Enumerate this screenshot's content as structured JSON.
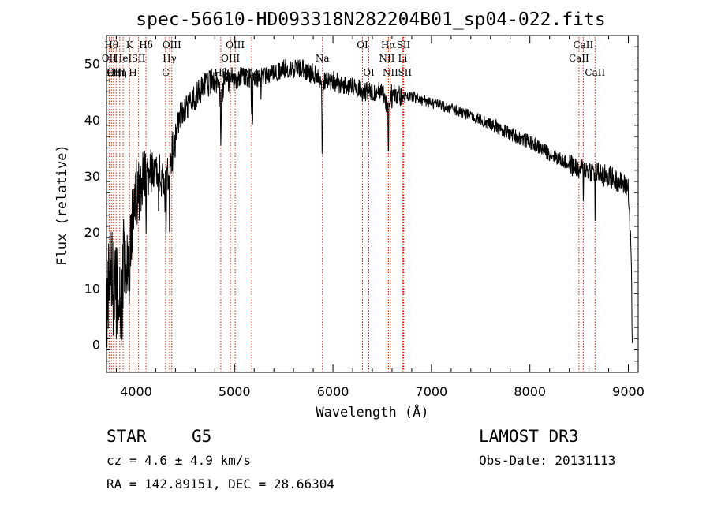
{
  "chart_data": {
    "type": "line",
    "title": "spec-56610-HD093318N282204B01_sp04-022.fits",
    "xlabel": "Wavelength (Å)",
    "ylabel": "Flux (relative)",
    "xlim": [
      3700,
      9100
    ],
    "ylim": [
      -5,
      55
    ],
    "xticks": [
      4000,
      5000,
      6000,
      7000,
      8000,
      9000
    ],
    "yticks": [
      0,
      10,
      20,
      30,
      40,
      50
    ],
    "series": [
      {
        "name": "flux",
        "anchors": [
          [
            3700,
            5
          ],
          [
            3740,
            15
          ],
          [
            3780,
            8
          ],
          [
            3820,
            10
          ],
          [
            3850,
            3
          ],
          [
            3880,
            18
          ],
          [
            3920,
            12
          ],
          [
            3960,
            22
          ],
          [
            4000,
            27
          ],
          [
            4050,
            28
          ],
          [
            4100,
            29
          ],
          [
            4150,
            31
          ],
          [
            4200,
            30
          ],
          [
            4250,
            30
          ],
          [
            4300,
            27
          ],
          [
            4340,
            32
          ],
          [
            4400,
            37
          ],
          [
            4450,
            41
          ],
          [
            4500,
            42
          ],
          [
            4600,
            44
          ],
          [
            4700,
            46
          ],
          [
            4800,
            47
          ],
          [
            4861,
            44
          ],
          [
            4900,
            47
          ],
          [
            5000,
            47
          ],
          [
            5100,
            48
          ],
          [
            5200,
            47
          ],
          [
            5300,
            48
          ],
          [
            5400,
            48
          ],
          [
            5500,
            49
          ],
          [
            5600,
            49
          ],
          [
            5700,
            49
          ],
          [
            5800,
            48
          ],
          [
            5900,
            47
          ],
          [
            6000,
            47
          ],
          [
            6100,
            46
          ],
          [
            6200,
            46
          ],
          [
            6300,
            45
          ],
          [
            6400,
            45
          ],
          [
            6500,
            45
          ],
          [
            6563,
            42
          ],
          [
            6600,
            45
          ],
          [
            6700,
            44
          ],
          [
            6800,
            44
          ],
          [
            7000,
            43
          ],
          [
            7200,
            42
          ],
          [
            7500,
            40
          ],
          [
            7800,
            37.5
          ],
          [
            8000,
            36
          ],
          [
            8200,
            34
          ],
          [
            8400,
            32
          ],
          [
            8600,
            31
          ],
          [
            8800,
            30
          ],
          [
            8900,
            29
          ],
          [
            9000,
            28
          ],
          [
            9030,
            15
          ],
          [
            9040,
            0
          ]
        ],
        "dips": [
          [
            3934,
            5
          ],
          [
            3968,
            4
          ],
          [
            4101,
            8
          ],
          [
            4227,
            6
          ],
          [
            4305,
            10
          ],
          [
            4340,
            17
          ],
          [
            4383,
            5
          ],
          [
            4861,
            10
          ],
          [
            5020,
            3
          ],
          [
            5172,
            6
          ],
          [
            5183,
            12
          ],
          [
            5270,
            4
          ],
          [
            5890,
            12
          ],
          [
            5896,
            10
          ],
          [
            6563,
            11
          ],
          [
            6600,
            3
          ],
          [
            8498,
            4
          ],
          [
            8542,
            6
          ],
          [
            8662,
            8
          ],
          [
            8750,
            5
          ]
        ]
      }
    ],
    "lines": [
      {
        "wavelength": 3727,
        "label": "OII",
        "row": 1
      },
      {
        "wavelength": 3750,
        "label": "Hθ",
        "row": 0
      },
      {
        "wavelength": 3771,
        "label": "Hη",
        "row": 2
      },
      {
        "wavelength": 3798,
        "label": "OIII",
        "row": 2
      },
      {
        "wavelength": 3835,
        "label": "Hη",
        "row": 2
      },
      {
        "wavelength": 3869,
        "label": "HeI",
        "row": 1
      },
      {
        "wavelength": 3934,
        "label": "K",
        "row": 0
      },
      {
        "wavelength": 3968,
        "label": "H",
        "row": 2
      },
      {
        "wavelength": 4026,
        "label": "SII",
        "row": 1
      },
      {
        "wavelength": 4101,
        "label": "Hδ",
        "row": 0
      },
      {
        "wavelength": 4300,
        "label": "G",
        "row": 2
      },
      {
        "wavelength": 4341,
        "label": "Hγ",
        "row": 1
      },
      {
        "wavelength": 4363,
        "label": "OIII",
        "row": 0
      },
      {
        "wavelength": 4861,
        "label": "Hβ",
        "row": 2
      },
      {
        "wavelength": 4959,
        "label": "OIII",
        "row": 1
      },
      {
        "wavelength": 5007,
        "label": "OIII",
        "row": 0
      },
      {
        "wavelength": 5175,
        "label": "Mg",
        "row": 2
      },
      {
        "wavelength": 5893,
        "label": "Na",
        "row": 1
      },
      {
        "wavelength": 6300,
        "label": "OI",
        "row": 0
      },
      {
        "wavelength": 6364,
        "label": "OI",
        "row": 2
      },
      {
        "wavelength": 6548,
        "label": "NII",
        "row": 1
      },
      {
        "wavelength": 6563,
        "label": "Hα",
        "row": 0
      },
      {
        "wavelength": 6583,
        "label": "NII",
        "row": 2
      },
      {
        "wavelength": 6708,
        "label": "Li",
        "row": 1
      },
      {
        "wavelength": 6716,
        "label": "SII",
        "row": 0
      },
      {
        "wavelength": 6731,
        "label": "SII",
        "row": 2
      },
      {
        "wavelength": 8498,
        "label": "CaII",
        "row": 1
      },
      {
        "wavelength": 8542,
        "label": "CaII",
        "row": 0
      },
      {
        "wavelength": 8662,
        "label": "CaII",
        "row": 2
      }
    ]
  },
  "info": {
    "class": "STAR",
    "subclass": "G5",
    "survey": "LAMOST DR3",
    "cz": "cz = 4.6 ± 4.9 km/s",
    "obs_date": "Obs-Date: 20131113",
    "radec": "RA = 142.89151, DEC =  28.66304"
  },
  "colors": {
    "line_marker": "#cc2200",
    "spectrum": "#000000",
    "background": "#ffffff"
  }
}
